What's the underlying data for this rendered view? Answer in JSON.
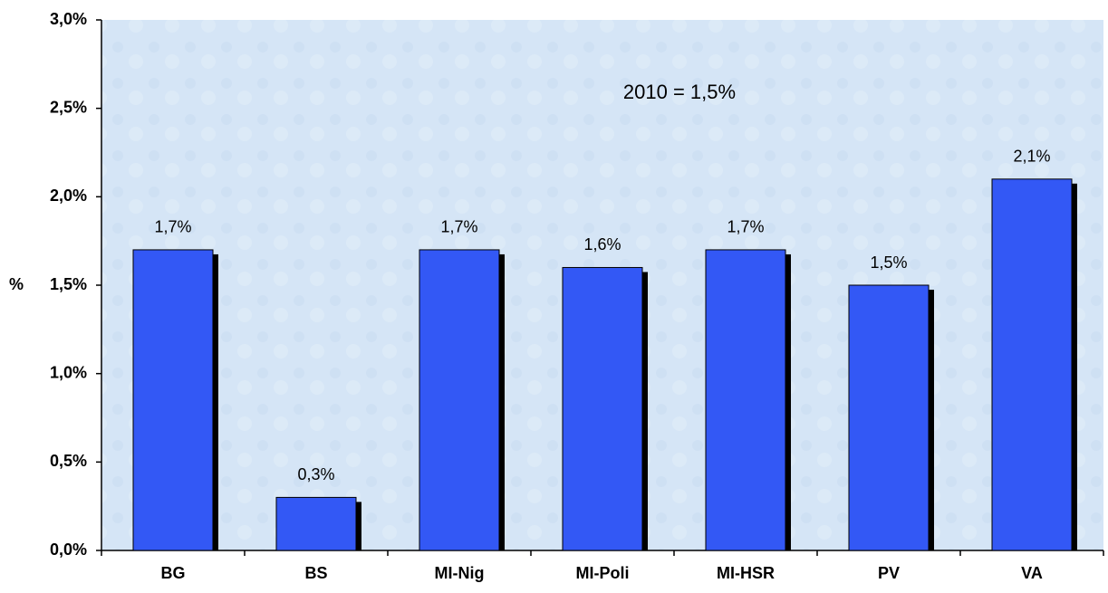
{
  "chart_data": {
    "type": "bar",
    "annotation": "2010 = 1,5%",
    "y_axis_label": "%",
    "categories": [
      "BG",
      "BS",
      "MI-Nig",
      "MI-Poli",
      "MI-HSR",
      "PV",
      "VA"
    ],
    "values": [
      1.7,
      0.3,
      1.7,
      1.6,
      1.7,
      1.5,
      2.1
    ],
    "value_labels": [
      "1,7%",
      "0,3%",
      "1,7%",
      "1,6%",
      "1,7%",
      "1,5%",
      "2,1%"
    ],
    "color": "#3358f5",
    "ylim": [
      0,
      3
    ],
    "yticks": [
      {
        "value": 0,
        "label": "0,0%"
      },
      {
        "value": 0.5,
        "label": "0,5%"
      },
      {
        "value": 1,
        "label": "1,0%"
      },
      {
        "value": 1.5,
        "label": "1,5%"
      },
      {
        "value": 2,
        "label": "2,0%"
      },
      {
        "value": 2.5,
        "label": "2,5%"
      },
      {
        "value": 3,
        "label": "3,0%"
      }
    ],
    "grid": false
  }
}
